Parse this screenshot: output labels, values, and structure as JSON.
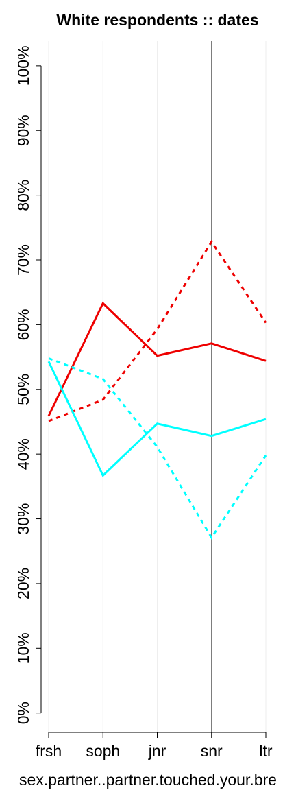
{
  "chart_data": {
    "type": "line",
    "title": "White respondents :: dates",
    "x_label": "sex.partner..partner.touched.your.bre",
    "categories": [
      "frsh",
      "soph",
      "jnr",
      "snr",
      "ltr"
    ],
    "series": [
      {
        "color": "#ee0000",
        "dashed": false,
        "values": [
          45.9,
          63.3,
          55.2,
          57.1,
          54.4
        ]
      },
      {
        "color": "#ee0000",
        "dashed": true,
        "values": [
          45.1,
          48.4,
          59.3,
          72.8,
          60.3
        ]
      },
      {
        "color": "#00ffff",
        "dashed": false,
        "values": [
          54.3,
          36.7,
          44.7,
          42.8,
          45.4
        ]
      },
      {
        "color": "#00ffff",
        "dashed": true,
        "values": [
          54.8,
          51.6,
          41.1,
          27.1,
          39.8
        ]
      }
    ],
    "ylim": [
      -3,
      103.8
    ],
    "yticks": [
      {
        "value": 0,
        "label": "0%"
      },
      {
        "value": 10,
        "label": "10%"
      },
      {
        "value": 20,
        "label": "20%"
      },
      {
        "value": 30,
        "label": "30%"
      },
      {
        "value": 40,
        "label": "40%"
      },
      {
        "value": 50,
        "label": "50%"
      },
      {
        "value": 60,
        "label": "60%"
      },
      {
        "value": 70,
        "label": "70%"
      },
      {
        "value": 80,
        "label": "80%"
      },
      {
        "value": 90,
        "label": "90%"
      },
      {
        "value": 100,
        "label": "100%"
      }
    ],
    "grid": true,
    "vline": "snr"
  }
}
